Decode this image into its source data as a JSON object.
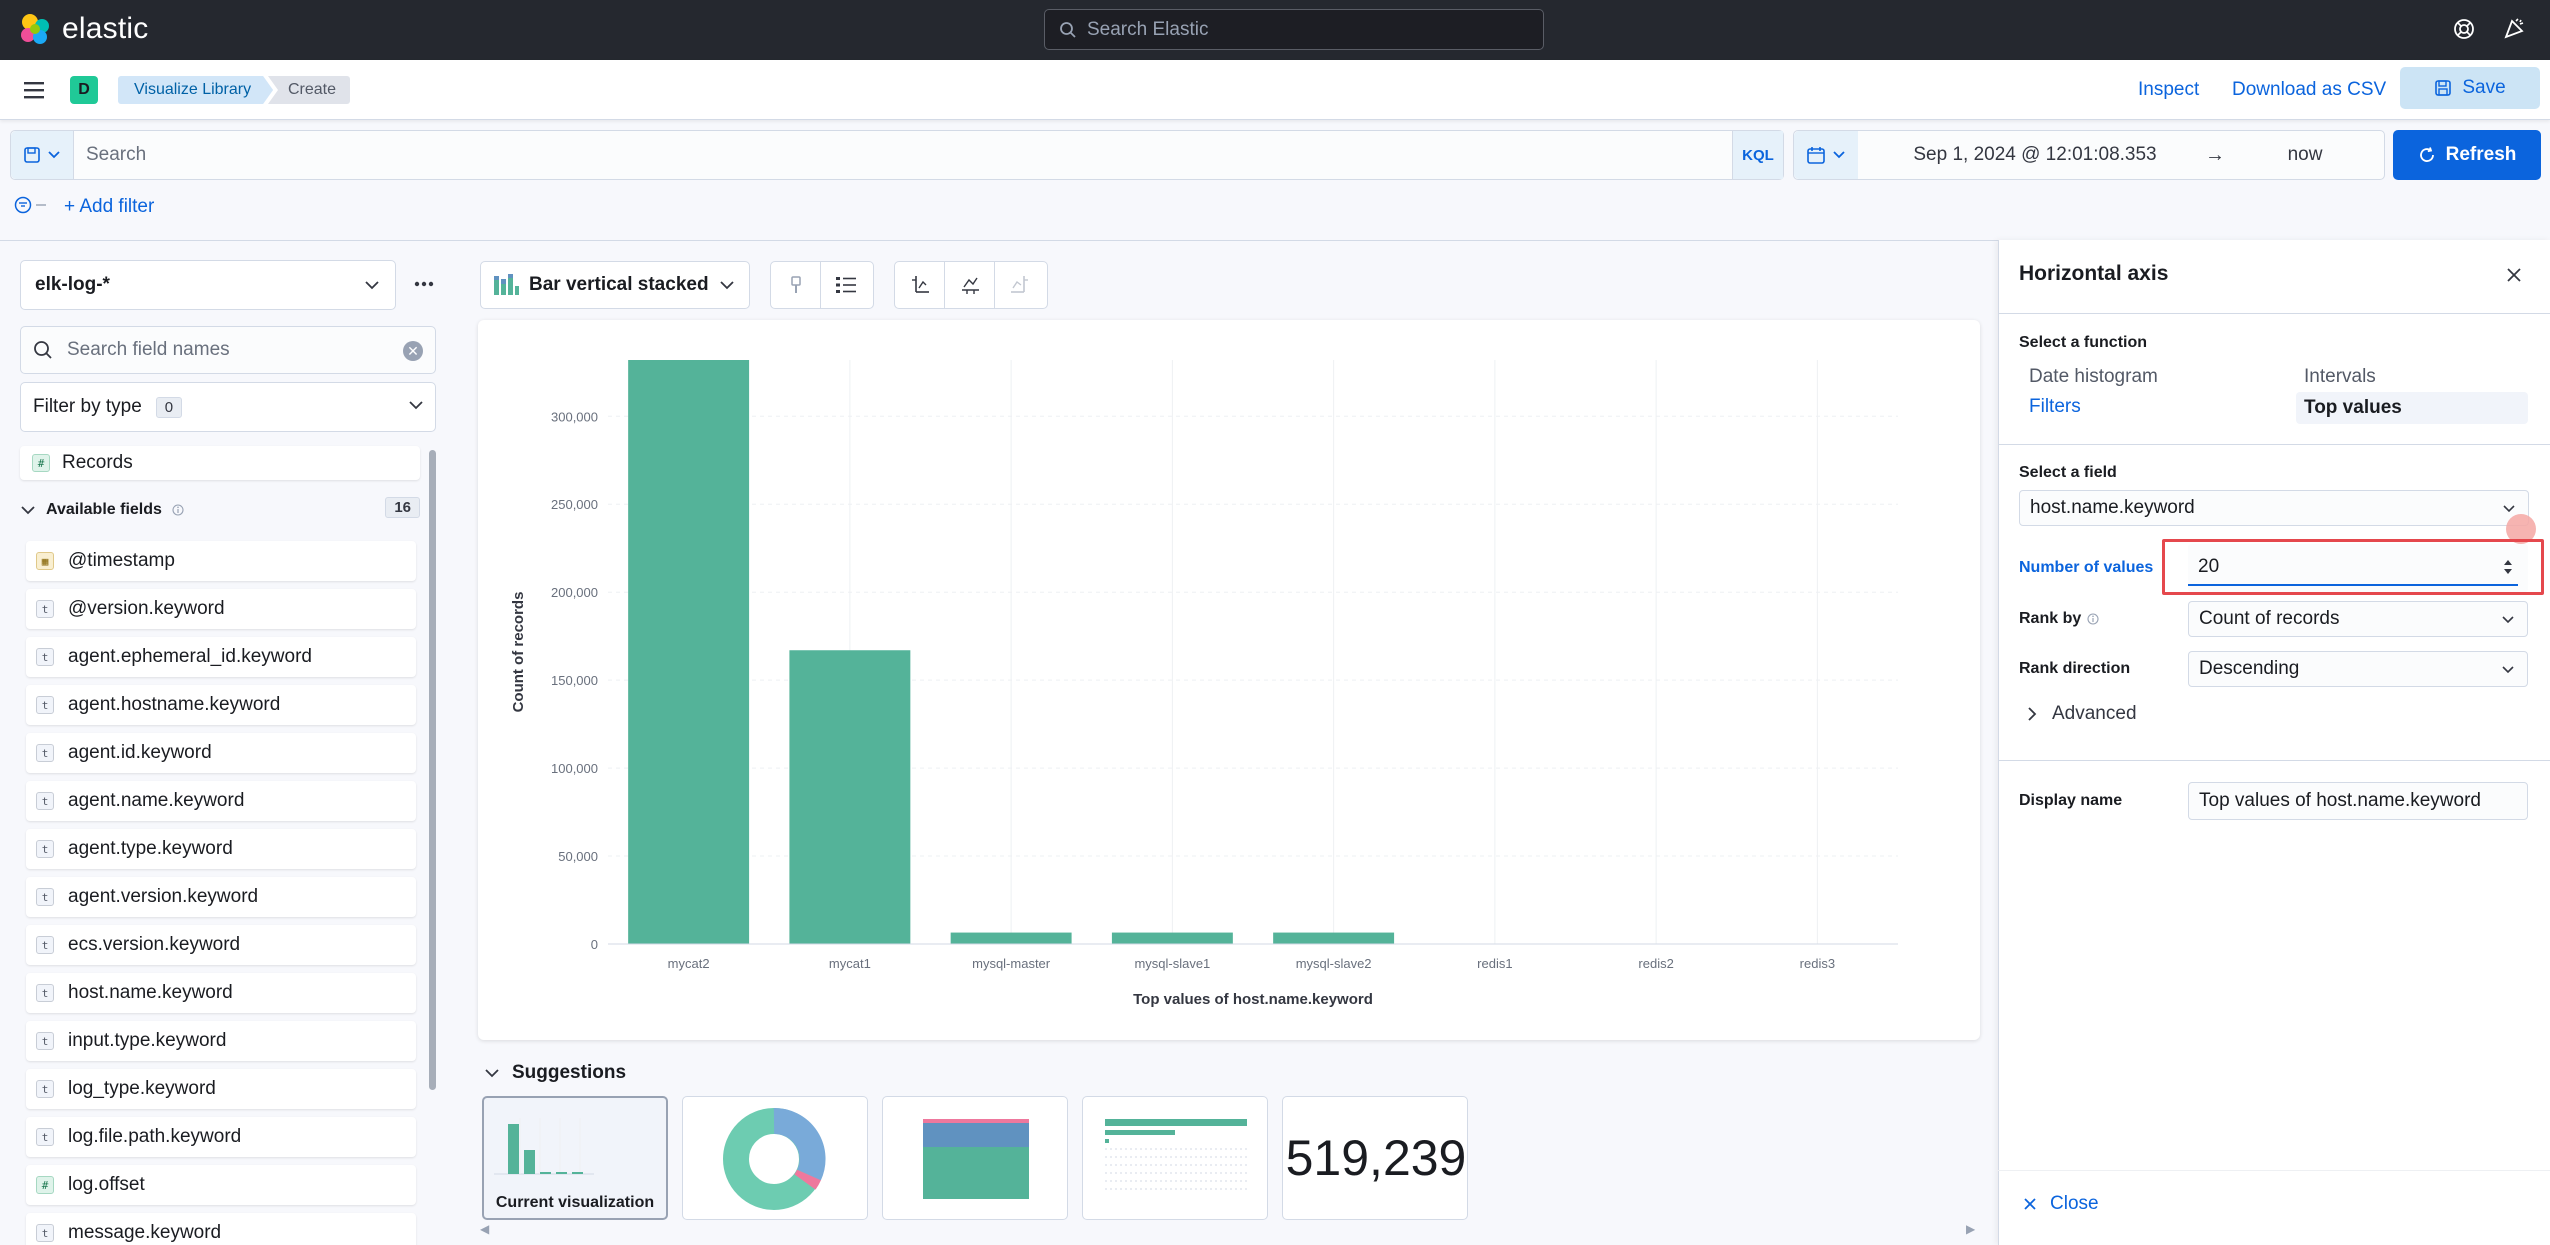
{
  "app": {
    "logo_text": "elastic",
    "search_placeholder": "Search Elastic"
  },
  "header": {
    "space_initial": "D",
    "breadcrumbs": [
      "Visualize Library",
      "Create"
    ],
    "inspect_label": "Inspect",
    "download_label": "Download as CSV",
    "save_label": "Save"
  },
  "query": {
    "placeholder": "Search",
    "language": "KQL",
    "date_start": "Sep 1, 2024 @ 12:01:08.353",
    "date_arrow": "→",
    "date_end": "now",
    "refresh_label": "Refresh",
    "add_filter_label": "+ Add filter"
  },
  "left_panel": {
    "index_pattern": "elk-log-*",
    "search_placeholder": "Search field names",
    "filter_type_label": "Filter by type",
    "filter_type_count": "0",
    "records_label": "Records",
    "available_label": "Available fields",
    "available_count": "16",
    "fields": [
      {
        "name": "@timestamp",
        "type": "date",
        "glyph": "▦"
      },
      {
        "name": "@version.keyword",
        "type": "string",
        "glyph": "t"
      },
      {
        "name": "agent.ephemeral_id.keyword",
        "type": "string",
        "glyph": "t"
      },
      {
        "name": "agent.hostname.keyword",
        "type": "string",
        "glyph": "t"
      },
      {
        "name": "agent.id.keyword",
        "type": "string",
        "glyph": "t"
      },
      {
        "name": "agent.name.keyword",
        "type": "string",
        "glyph": "t"
      },
      {
        "name": "agent.type.keyword",
        "type": "string",
        "glyph": "t"
      },
      {
        "name": "agent.version.keyword",
        "type": "string",
        "glyph": "t"
      },
      {
        "name": "ecs.version.keyword",
        "type": "string",
        "glyph": "t"
      },
      {
        "name": "host.name.keyword",
        "type": "string",
        "glyph": "t"
      },
      {
        "name": "input.type.keyword",
        "type": "string",
        "glyph": "t"
      },
      {
        "name": "log_type.keyword",
        "type": "string",
        "glyph": "t"
      },
      {
        "name": "log.file.path.keyword",
        "type": "string",
        "glyph": "t"
      },
      {
        "name": "log.offset",
        "type": "number",
        "glyph": "#"
      },
      {
        "name": "message.keyword",
        "type": "string",
        "glyph": "t"
      }
    ]
  },
  "workspace": {
    "chart_type_label": "Bar vertical stacked",
    "suggestions_label": "Suggestions",
    "current_visualization_label": "Current visualization",
    "metric_suggestion_value": "519,239"
  },
  "chart_data": {
    "type": "bar",
    "categories": [
      "mycat2",
      "mycat1",
      "mysql-master",
      "mysql-slave1",
      "mysql-slave2",
      "redis1",
      "redis2",
      "redis3"
    ],
    "values": [
      332000,
      167000,
      6500,
      6500,
      6500,
      0,
      0,
      0
    ],
    "xlabel": "Top values of host.name.keyword",
    "ylabel": "Count of records",
    "ylim": [
      0,
      332000
    ],
    "yticks": [
      0,
      50000,
      100000,
      150000,
      200000,
      250000,
      300000
    ],
    "ytick_labels": [
      "0",
      "50,000",
      "100,000",
      "150,000",
      "200,000",
      "250,000",
      "300,000"
    ],
    "color": "#54b399",
    "grid": true,
    "legend": "none"
  },
  "flyout": {
    "title": "Horizontal axis",
    "function_label": "Select a function",
    "functions": {
      "date_histogram": "Date histogram",
      "intervals": "Intervals",
      "filters": "Filters",
      "top_values": "Top values"
    },
    "field_label": "Select a field",
    "field_value": "host.name.keyword",
    "number_of_values_label": "Number of values",
    "number_of_values": "20",
    "rank_by_label": "Rank by",
    "rank_by_value": "Count of records",
    "rank_direction_label": "Rank direction",
    "rank_direction_value": "Descending",
    "advanced_label": "Advanced",
    "display_name_label": "Display name",
    "display_name_value": "Top values of host.name.keyword",
    "close_label": "Close"
  }
}
